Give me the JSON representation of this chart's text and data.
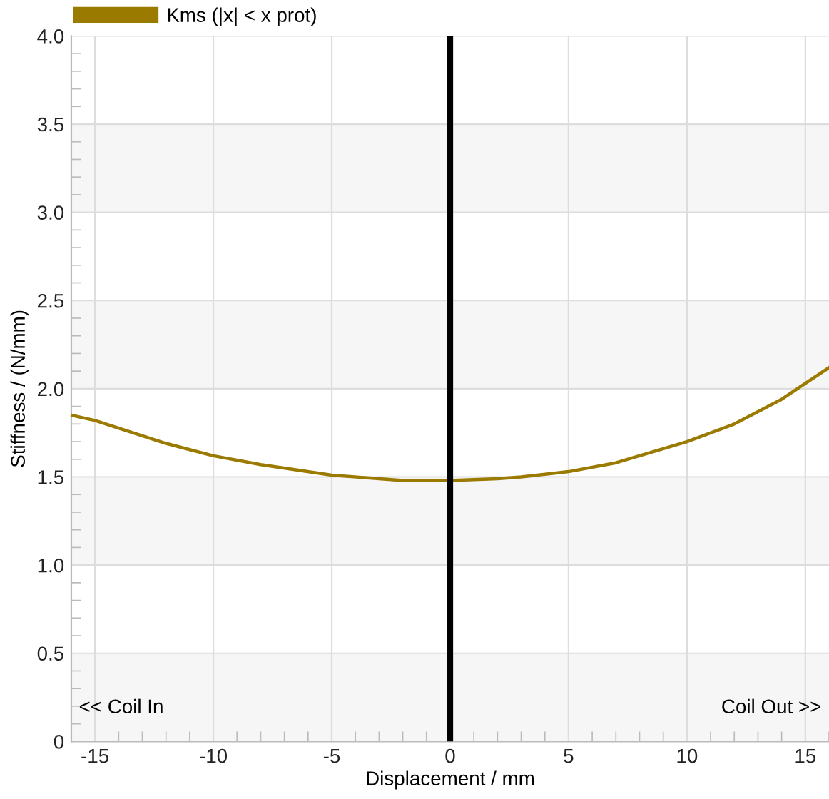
{
  "chart_data": {
    "type": "line",
    "xlabel": "Displacement / mm",
    "ylabel": "Stiffness / (N/mm)",
    "xlim": [
      -16,
      16
    ],
    "xticks": [
      -15,
      -10,
      -5,
      0,
      5,
      10,
      15
    ],
    "ylim": [
      0,
      4.0
    ],
    "yticks": [
      0,
      0.5,
      {
        "value": 1,
        "label": "1.0"
      },
      1.5,
      {
        "value": 2,
        "label": "2.0"
      },
      2.5,
      {
        "value": 3,
        "label": "3.0"
      },
      3.5,
      {
        "value": 4,
        "label": "4.0"
      }
    ],
    "grid": true,
    "legend": "top left",
    "marker": "none",
    "line_style": "solid",
    "series": [
      {
        "name": "Kms (|x| < x prot)",
        "color": "#9b7a00",
        "x": [
          -16,
          -15,
          -12,
          -10,
          -8,
          -5,
          -3,
          -2,
          0,
          2,
          3,
          5,
          7,
          10,
          12,
          14,
          15,
          16
        ],
        "values": [
          1.85,
          1.82,
          1.69,
          1.62,
          1.57,
          1.51,
          1.49,
          1.48,
          1.48,
          1.49,
          1.5,
          1.53,
          1.58,
          1.7,
          1.8,
          1.94,
          2.03,
          2.12
        ]
      }
    ],
    "ref_lines": [
      {
        "axis": "x",
        "value": 0,
        "color": "#000000",
        "line_style": "solid"
      }
    ],
    "bands": [
      {
        "axis": "y",
        "from": 0,
        "to": 0.5,
        "color": "#f6f6f6"
      },
      {
        "axis": "y",
        "from": 1.0,
        "to": 1.5,
        "color": "#f6f6f6"
      },
      {
        "axis": "y",
        "from": 2.0,
        "to": 2.5,
        "color": "#f6f6f6"
      },
      {
        "axis": "y",
        "from": 3.0,
        "to": 3.5,
        "color": "#f6f6f6"
      }
    ],
    "annotations": [
      "<< Coil In",
      "Coil Out >>"
    ]
  }
}
